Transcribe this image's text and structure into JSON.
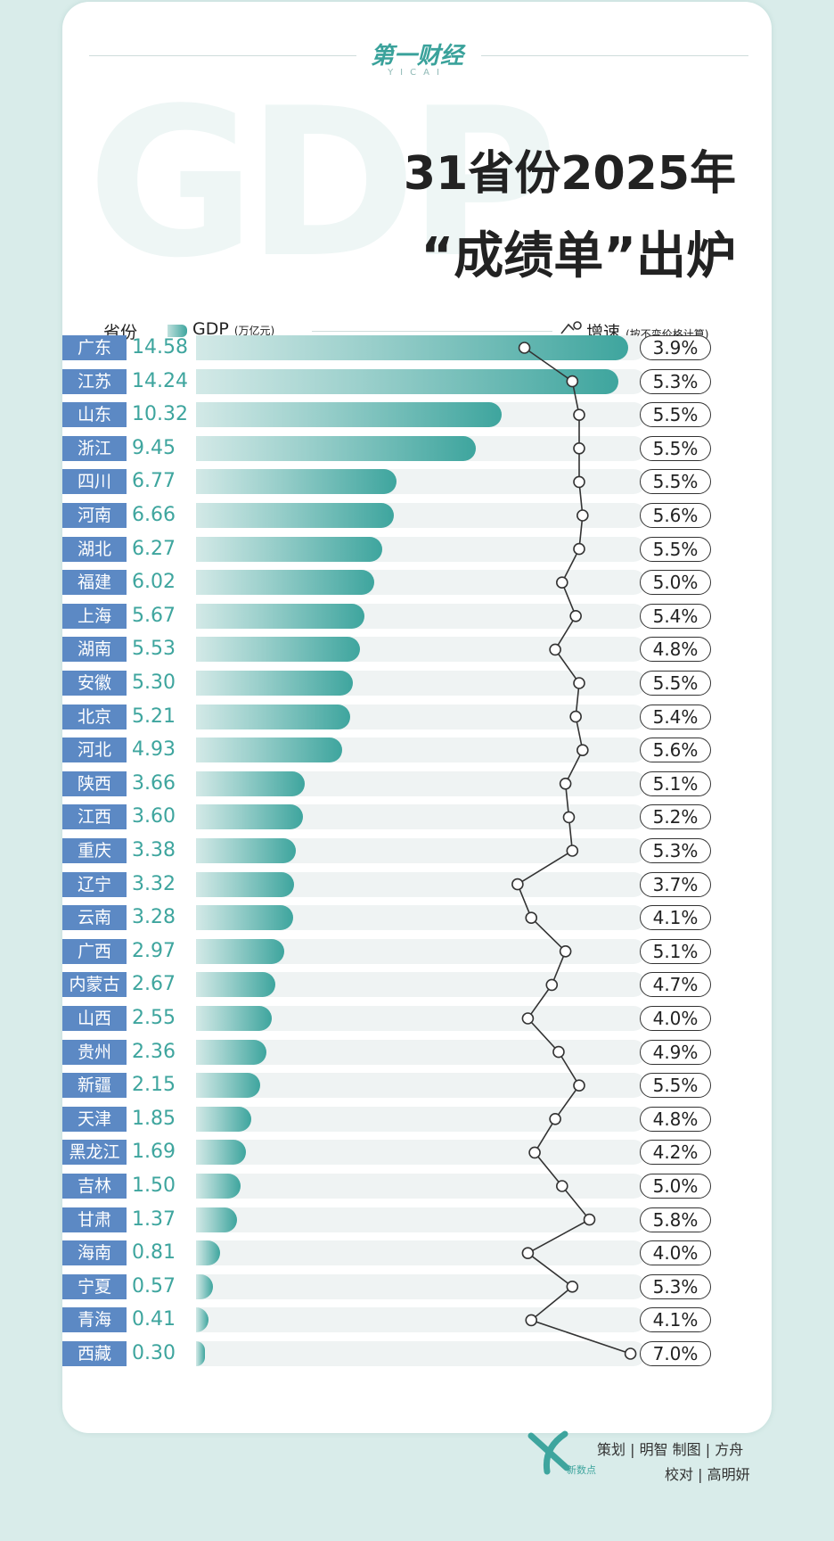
{
  "header": {
    "brand": "第一财经",
    "brand_sub": "YICAI",
    "bg_text": "GDP",
    "title_line1": "31省份2025年",
    "title_line2": "“成绩单”出炉"
  },
  "legend": {
    "province_label": "省份",
    "gdp_label": "GDP",
    "gdp_unit": "(万亿元)",
    "growth_label": "增速",
    "growth_note": "(按不变价格计算)"
  },
  "colors": {
    "accent": "#3ea59e",
    "province_bg": "#5c89c4",
    "track": "#eff3f3"
  },
  "chart_data": {
    "type": "bar",
    "categories": [
      "广东",
      "江苏",
      "山东",
      "浙江",
      "四川",
      "河南",
      "湖北",
      "福建",
      "上海",
      "湖南",
      "安徽",
      "北京",
      "河北",
      "陕西",
      "江西",
      "重庆",
      "辽宁",
      "云南",
      "广西",
      "内蒙古",
      "山西",
      "贵州",
      "新疆",
      "天津",
      "黑龙江",
      "吉林",
      "甘肃",
      "海南",
      "宁夏",
      "青海",
      "西藏"
    ],
    "series": [
      {
        "name": "GDP",
        "values": [
          14.58,
          14.24,
          10.32,
          9.45,
          6.77,
          6.66,
          6.27,
          6.02,
          5.67,
          5.53,
          5.3,
          5.21,
          4.93,
          3.66,
          3.6,
          3.38,
          3.32,
          3.28,
          2.97,
          2.67,
          2.55,
          2.36,
          2.15,
          1.85,
          1.69,
          1.5,
          1.37,
          0.81,
          0.57,
          0.41,
          0.3
        ],
        "labels": [
          "14.58",
          "14.24",
          "10.32",
          "9.45",
          "6.77",
          "6.66",
          "6.27",
          "6.02",
          "5.67",
          "5.53",
          "5.30",
          "5.21",
          "4.93",
          "3.66",
          "3.60",
          "3.38",
          "3.32",
          "3.28",
          "2.97",
          "2.67",
          "2.55",
          "2.36",
          "2.15",
          "1.85",
          "1.69",
          "1.50",
          "1.37",
          "0.81",
          "0.57",
          "0.41",
          "0.30"
        ]
      },
      {
        "name": "增速",
        "values": [
          3.9,
          5.3,
          5.5,
          5.5,
          5.5,
          5.6,
          5.5,
          5.0,
          5.4,
          4.8,
          5.5,
          5.4,
          5.6,
          5.1,
          5.2,
          5.3,
          3.7,
          4.1,
          5.1,
          4.7,
          4.0,
          4.9,
          5.5,
          4.8,
          4.2,
          5.0,
          5.8,
          4.0,
          5.3,
          4.1,
          7.0
        ],
        "labels": [
          "3.9%",
          "5.3%",
          "5.5%",
          "5.5%",
          "5.5%",
          "5.6%",
          "5.5%",
          "5.0%",
          "5.4%",
          "4.8%",
          "5.5%",
          "5.4%",
          "5.6%",
          "5.1%",
          "5.2%",
          "5.3%",
          "3.7%",
          "4.1%",
          "5.1%",
          "4.7%",
          "4.0%",
          "4.9%",
          "5.5%",
          "4.8%",
          "4.2%",
          "5.0%",
          "5.8%",
          "4.0%",
          "5.3%",
          "4.1%",
          "7.0%"
        ]
      }
    ]
  },
  "footer": {
    "logo_text": "新数点",
    "line1": "策划 | 明智  制图 | 方舟",
    "line2": "校对 | 高明妍"
  }
}
